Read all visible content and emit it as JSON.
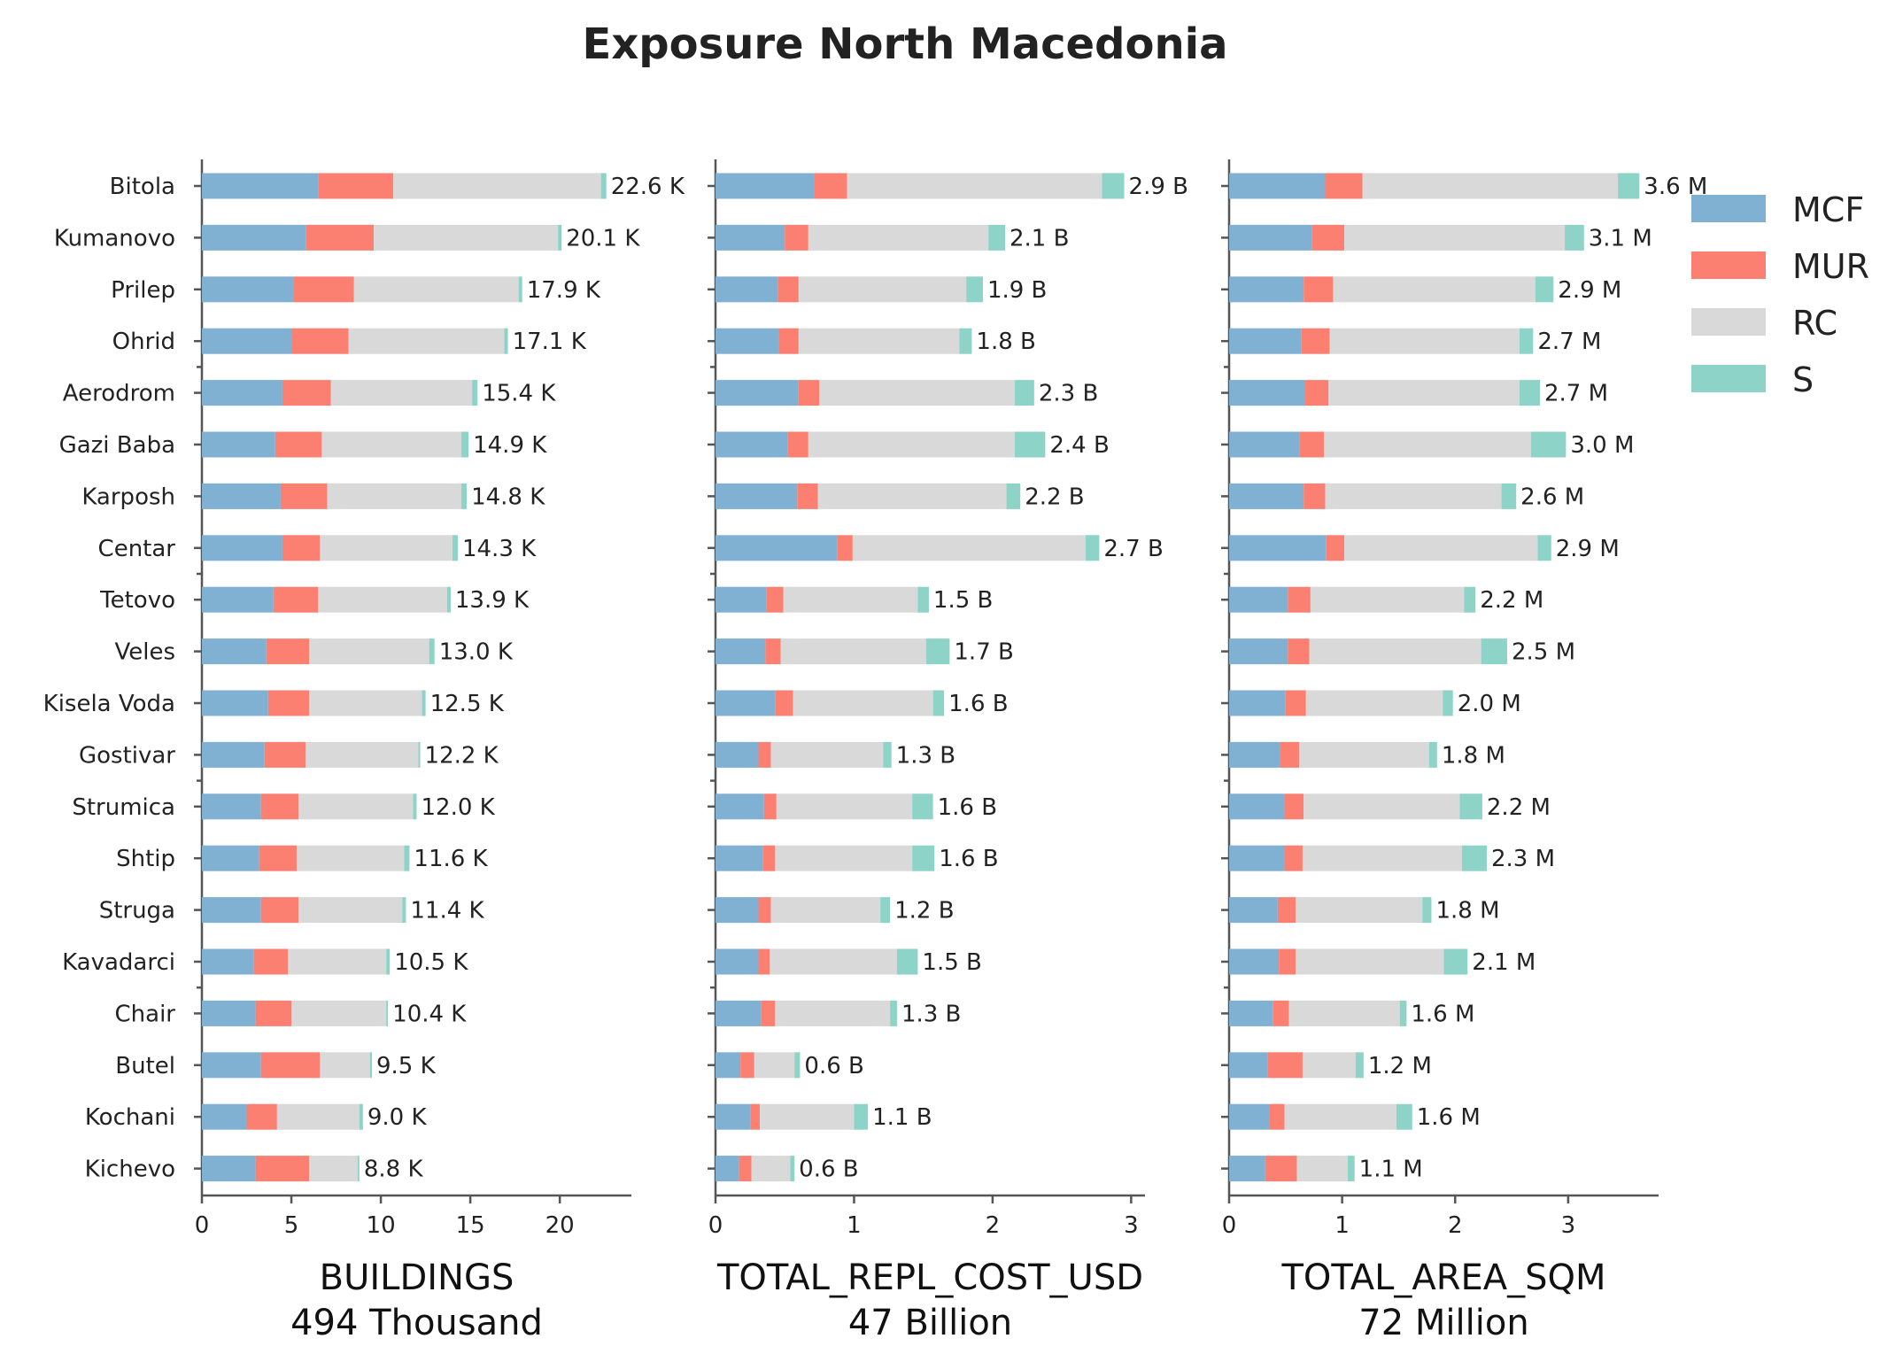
{
  "chart_data": {
    "type": "bar",
    "orientation": "horizontal",
    "stacked": true,
    "title": "Exposure North Macedonia",
    "legend": {
      "placement": "top-right",
      "entries": [
        "MCF",
        "MUR",
        "RC",
        "S"
      ]
    },
    "colors": {
      "MCF": "#80b1d3",
      "MUR": "#fb8072",
      "RC": "#d9d9d9",
      "S": "#8dd3c7"
    },
    "categories": [
      "Bitola",
      "Kumanovo",
      "Prilep",
      "Ohrid",
      "Aerodrom",
      "Gazi Baba",
      "Karposh",
      "Centar",
      "Tetovo",
      "Veles",
      "Kisela Voda",
      "Gostivar",
      "Strumica",
      "Shtip",
      "Struga",
      "Kavadarci",
      "Chair",
      "Butel",
      "Kochani",
      "Kichevo"
    ],
    "panels": [
      {
        "xlabel": "BUILDINGS",
        "xlabel_sub": "494 Thousand",
        "xlim": [
          0,
          24
        ],
        "xticks": [
          0,
          5,
          10,
          15,
          20
        ],
        "xtick_labels": [
          "0",
          "5",
          "10",
          "15",
          "20"
        ],
        "series": [
          {
            "name": "MCF",
            "values": [
              6.5,
              5.8,
              5.1,
              5.0,
              4.5,
              4.1,
              4.4,
              4.5,
              4.0,
              3.6,
              3.7,
              3.5,
              3.3,
              3.2,
              3.3,
              2.9,
              3.0,
              3.3,
              2.5,
              3.0
            ]
          },
          {
            "name": "MUR",
            "values": [
              4.2,
              3.8,
              3.4,
              3.2,
              2.7,
              2.6,
              2.6,
              2.1,
              2.5,
              2.4,
              2.3,
              2.3,
              2.1,
              2.1,
              2.1,
              1.9,
              2.0,
              3.3,
              1.7,
              3.0
            ]
          },
          {
            "name": "RC",
            "values": [
              11.6,
              10.3,
              9.2,
              8.7,
              7.9,
              7.8,
              7.5,
              7.4,
              7.2,
              6.7,
              6.3,
              6.3,
              6.4,
              6.0,
              5.8,
              5.5,
              5.3,
              2.8,
              4.6,
              2.7
            ]
          },
          {
            "name": "S",
            "values": [
              0.3,
              0.2,
              0.2,
              0.2,
              0.3,
              0.4,
              0.3,
              0.3,
              0.2,
              0.3,
              0.2,
              0.1,
              0.2,
              0.3,
              0.2,
              0.2,
              0.1,
              0.1,
              0.2,
              0.1
            ]
          }
        ],
        "labels": [
          "22.6 K",
          "20.1 K",
          "17.9 K",
          "17.1 K",
          "15.4 K",
          "14.9 K",
          "14.8 K",
          "14.3 K",
          "13.9 K",
          "13.0 K",
          "12.5 K",
          "12.2 K",
          "12.0 K",
          "11.6 K",
          "11.4 K",
          "10.5 K",
          "10.4 K",
          "9.5 K",
          "9.0 K",
          "8.8 K"
        ]
      },
      {
        "xlabel": "TOTAL_REPL_COST_USD",
        "xlabel_sub": "47 Billion",
        "xlim": [
          0,
          3.1
        ],
        "xticks": [
          0,
          1,
          2,
          3
        ],
        "xtick_labels": [
          "0",
          "1",
          "2",
          "3"
        ],
        "series": [
          {
            "name": "MCF",
            "values": [
              0.71,
              0.5,
              0.45,
              0.46,
              0.6,
              0.52,
              0.59,
              0.88,
              0.37,
              0.36,
              0.43,
              0.31,
              0.35,
              0.34,
              0.31,
              0.31,
              0.33,
              0.18,
              0.25,
              0.17
            ]
          },
          {
            "name": "MUR",
            "values": [
              0.24,
              0.17,
              0.15,
              0.14,
              0.15,
              0.15,
              0.15,
              0.11,
              0.12,
              0.11,
              0.13,
              0.09,
              0.09,
              0.09,
              0.09,
              0.08,
              0.1,
              0.1,
              0.07,
              0.09
            ]
          },
          {
            "name": "RC",
            "values": [
              1.84,
              1.3,
              1.21,
              1.16,
              1.41,
              1.49,
              1.36,
              1.68,
              0.97,
              1.05,
              1.01,
              0.81,
              0.98,
              0.99,
              0.79,
              0.92,
              0.83,
              0.29,
              0.68,
              0.28
            ]
          },
          {
            "name": "S",
            "values": [
              0.16,
              0.12,
              0.12,
              0.09,
              0.14,
              0.22,
              0.1,
              0.1,
              0.08,
              0.17,
              0.08,
              0.06,
              0.15,
              0.16,
              0.07,
              0.15,
              0.05,
              0.04,
              0.1,
              0.03
            ]
          }
        ],
        "labels": [
          "2.9 B",
          "2.1 B",
          "1.9 B",
          "1.8 B",
          "2.3 B",
          "2.4 B",
          "2.2 B",
          "2.7 B",
          "1.5 B",
          "1.7 B",
          "1.6 B",
          "1.3 B",
          "1.6 B",
          "1.6 B",
          "1.2 B",
          "1.5 B",
          "1.3 B",
          "0.6 B",
          "1.1 B",
          "0.6 B"
        ]
      },
      {
        "xlabel": "TOTAL_AREA_SQM",
        "xlabel_sub": "72 Million",
        "xlim": [
          0,
          3.8
        ],
        "xticks": [
          0,
          1,
          2,
          3
        ],
        "xtick_labels": [
          "0",
          "1",
          "2",
          "3"
        ],
        "series": [
          {
            "name": "MCF",
            "values": [
              0.85,
              0.73,
              0.66,
              0.64,
              0.67,
              0.62,
              0.66,
              0.86,
              0.52,
              0.52,
              0.5,
              0.45,
              0.49,
              0.49,
              0.43,
              0.44,
              0.39,
              0.34,
              0.36,
              0.32
            ]
          },
          {
            "name": "MUR",
            "values": [
              0.33,
              0.29,
              0.26,
              0.25,
              0.21,
              0.22,
              0.19,
              0.16,
              0.2,
              0.19,
              0.18,
              0.17,
              0.17,
              0.16,
              0.16,
              0.15,
              0.14,
              0.31,
              0.13,
              0.28
            ]
          },
          {
            "name": "RC",
            "values": [
              2.26,
              1.95,
              1.79,
              1.68,
              1.69,
              1.83,
              1.56,
              1.71,
              1.36,
              1.52,
              1.21,
              1.15,
              1.38,
              1.41,
              1.12,
              1.31,
              0.98,
              0.47,
              0.99,
              0.45
            ]
          },
          {
            "name": "S",
            "values": [
              0.19,
              0.17,
              0.16,
              0.12,
              0.18,
              0.31,
              0.13,
              0.12,
              0.1,
              0.23,
              0.09,
              0.07,
              0.2,
              0.22,
              0.08,
              0.21,
              0.06,
              0.07,
              0.14,
              0.06
            ]
          }
        ],
        "labels": [
          "3.6 M",
          "3.1 M",
          "2.9 M",
          "2.7 M",
          "2.7 M",
          "3.0 M",
          "2.6 M",
          "2.9 M",
          "2.2 M",
          "2.5 M",
          "2.0 M",
          "1.8 M",
          "2.2 M",
          "2.3 M",
          "1.8 M",
          "2.1 M",
          "1.6 M",
          "1.2 M",
          "1.6 M",
          "1.1 M"
        ]
      }
    ]
  }
}
